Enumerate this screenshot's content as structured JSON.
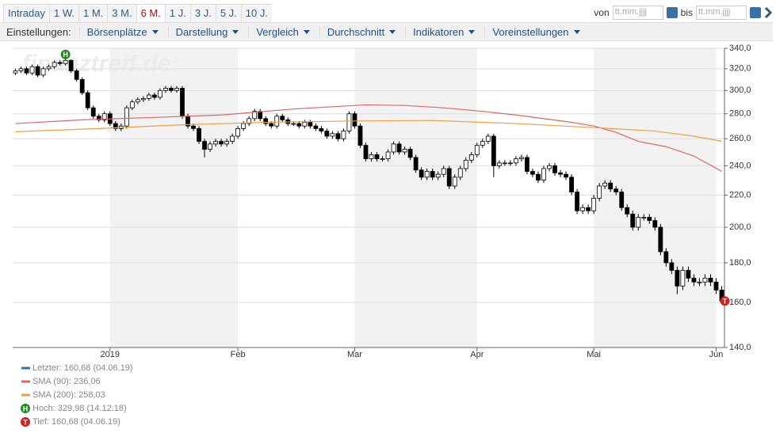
{
  "toolbar": {
    "ranges": [
      "Intraday",
      "1 W.",
      "1 M.",
      "3 M.",
      "6 M.",
      "1 J.",
      "3 J.",
      "5 J.",
      "10 J."
    ],
    "active": 4,
    "from_label": "von",
    "to_label": "bis",
    "date_placeholder": "tt.mm.jjjj"
  },
  "settings": {
    "label": "Einstellungen:",
    "menus": [
      "Börsenplätze",
      "Darstellung",
      "Vergleich",
      "Durchschnitt",
      "Indikatoren",
      "Voreinstellungen"
    ]
  },
  "chart_data": {
    "type": "candlestick",
    "watermark": "finanztreff.de:",
    "log_scale": true,
    "grid": true,
    "shade_alternate_months": true,
    "xlim": [
      -0.5,
      127.5
    ],
    "xticks": [
      {
        "value": 17,
        "label": "2019"
      },
      {
        "value": 40,
        "label": "Feb"
      },
      {
        "value": 61,
        "label": "Mar"
      },
      {
        "value": 83,
        "label": "Apr"
      },
      {
        "value": 104,
        "label": "Mai"
      },
      {
        "value": 126,
        "label": "Jun"
      }
    ],
    "ylim": [
      140,
      340
    ],
    "yticks": [
      {
        "value": 140,
        "label": "140,0"
      },
      {
        "value": 160,
        "label": "160,0"
      },
      {
        "value": 180,
        "label": "180,0"
      },
      {
        "value": 200,
        "label": "200,0"
      },
      {
        "value": 220,
        "label": "220,0"
      },
      {
        "value": 240,
        "label": "240,0"
      },
      {
        "value": 260,
        "label": "260,0"
      },
      {
        "value": 280,
        "label": "280,0"
      },
      {
        "value": 300,
        "label": "300,0"
      },
      {
        "value": 320,
        "label": "320,0"
      },
      {
        "value": 340,
        "label": "340,0"
      }
    ],
    "candles": {
      "name": "Letzter: 160,68 (04.06.19)",
      "color": "#3a6fb0",
      "up_color": "#ffffff",
      "down_color": "#000000",
      "open": [
        316,
        318,
        320,
        316,
        322,
        314,
        320,
        322,
        326,
        325,
        328,
        318,
        310,
        298,
        285,
        278,
        275,
        280,
        272,
        268,
        270,
        285,
        290,
        292,
        293,
        296,
        294,
        300,
        302,
        300,
        302,
        278,
        270,
        268,
        258,
        252,
        256,
        258,
        256,
        258,
        262,
        268,
        272,
        276,
        282,
        276,
        272,
        270,
        278,
        275,
        272,
        272,
        270,
        273,
        270,
        268,
        266,
        262,
        264,
        260,
        266,
        280,
        270,
        255,
        245,
        248,
        245,
        245,
        250,
        256,
        250,
        252,
        246,
        237,
        232,
        236,
        232,
        234,
        238,
        226,
        232,
        238,
        244,
        248,
        255,
        258,
        262,
        240,
        242,
        242,
        242,
        245,
        246,
        236,
        234,
        230,
        238,
        240,
        235,
        234,
        232,
        222,
        210,
        212,
        210,
        218,
        226,
        228,
        224,
        222,
        212,
        208,
        200,
        206,
        206,
        204,
        200,
        186,
        180,
        176,
        168,
        176,
        172,
        170,
        170,
        172,
        170,
        166
      ],
      "high": [
        320,
        322,
        322,
        324,
        324,
        322,
        324,
        328,
        328,
        329.98,
        329,
        320,
        312,
        300,
        287,
        280,
        282,
        282,
        274,
        272,
        287,
        292,
        294,
        295,
        298,
        298,
        302,
        304,
        304,
        304,
        304,
        280,
        272,
        270,
        260,
        258,
        260,
        260,
        260,
        264,
        270,
        274,
        278,
        284,
        284,
        278,
        274,
        280,
        280,
        277,
        274,
        274,
        275,
        275,
        272,
        270,
        268,
        266,
        266,
        268,
        282,
        282,
        272,
        257,
        250,
        250,
        247,
        252,
        258,
        258,
        254,
        254,
        248,
        239,
        238,
        238,
        236,
        240,
        240,
        234,
        240,
        246,
        250,
        257,
        260,
        264,
        264,
        244,
        244,
        244,
        247,
        248,
        248,
        238,
        236,
        240,
        242,
        242,
        237,
        236,
        234,
        224,
        214,
        214,
        220,
        228,
        230,
        230,
        226,
        224,
        214,
        210,
        208,
        208,
        208,
        206,
        202,
        188,
        182,
        178,
        178,
        178,
        174,
        172,
        174,
        174,
        172,
        168
      ],
      "low": [
        314,
        316,
        314,
        314,
        312,
        312,
        318,
        320,
        323,
        323,
        316,
        308,
        296,
        283,
        276,
        273,
        273,
        270,
        266,
        266,
        268,
        283,
        288,
        290,
        291,
        292,
        292,
        298,
        298,
        298,
        276,
        268,
        266,
        256,
        246,
        250,
        254,
        254,
        254,
        256,
        260,
        266,
        270,
        274,
        274,
        270,
        268,
        268,
        273,
        270,
        270,
        268,
        268,
        268,
        266,
        264,
        260,
        260,
        258,
        258,
        264,
        268,
        253,
        243,
        243,
        243,
        243,
        243,
        248,
        248,
        248,
        244,
        235,
        230,
        230,
        230,
        230,
        232,
        224,
        224,
        230,
        236,
        242,
        246,
        253,
        256,
        232,
        238,
        240,
        240,
        240,
        243,
        234,
        232,
        228,
        228,
        236,
        233,
        232,
        230,
        220,
        208,
        208,
        208,
        208,
        216,
        224,
        222,
        220,
        210,
        206,
        198,
        198,
        204,
        202,
        198,
        184,
        178,
        174,
        164,
        166,
        170,
        168,
        168,
        168,
        168,
        164,
        160.68
      ],
      "close": [
        318,
        320,
        316,
        322,
        314,
        320,
        322,
        326,
        325,
        328,
        318,
        310,
        298,
        285,
        278,
        275,
        280,
        272,
        268,
        270,
        285,
        290,
        292,
        293,
        296,
        294,
        300,
        302,
        300,
        302,
        278,
        270,
        268,
        258,
        252,
        256,
        258,
        256,
        258,
        262,
        268,
        272,
        276,
        282,
        276,
        272,
        270,
        278,
        275,
        272,
        272,
        270,
        273,
        270,
        268,
        266,
        262,
        264,
        260,
        266,
        280,
        270,
        255,
        245,
        248,
        245,
        245,
        250,
        256,
        250,
        252,
        246,
        237,
        232,
        236,
        232,
        234,
        238,
        226,
        232,
        238,
        244,
        248,
        255,
        258,
        262,
        240,
        242,
        242,
        242,
        245,
        246,
        236,
        234,
        230,
        238,
        240,
        235,
        234,
        232,
        222,
        210,
        212,
        210,
        218,
        226,
        228,
        224,
        222,
        212,
        208,
        200,
        206,
        206,
        204,
        200,
        186,
        180,
        176,
        168,
        176,
        172,
        170,
        170,
        172,
        170,
        166,
        160.68
      ]
    },
    "series": [
      {
        "name": "SMA (90): 236,06",
        "color": "#e06666",
        "x": [
          0,
          12,
          25,
          37,
          50,
          63,
          70,
          77,
          84,
          90,
          100,
          104,
          108,
          112,
          117,
          122,
          127
        ],
        "values": [
          272,
          275,
          277,
          279,
          284,
          287.5,
          287,
          285,
          282,
          279,
          273,
          270,
          265,
          258,
          254,
          247,
          236.06
        ]
      },
      {
        "name": "SMA (200): 258,03",
        "color": "#f0a040",
        "x": [
          0,
          15,
          30,
          45,
          60,
          75,
          90,
          105,
          115,
          122,
          127
        ],
        "values": [
          265.5,
          268,
          271,
          273,
          274,
          274.5,
          272,
          268.5,
          266,
          262,
          258.03
        ]
      }
    ],
    "markers": [
      {
        "name": "Hoch: 329,98 (14.12.18)",
        "label": "H",
        "color": "#1e8c1e",
        "x": 9,
        "value": 329.98
      },
      {
        "name": "Tief: 160,68 (04.06.19)",
        "label": "T",
        "color": "#d81e1e",
        "x": 127,
        "value": 160.68
      }
    ]
  }
}
